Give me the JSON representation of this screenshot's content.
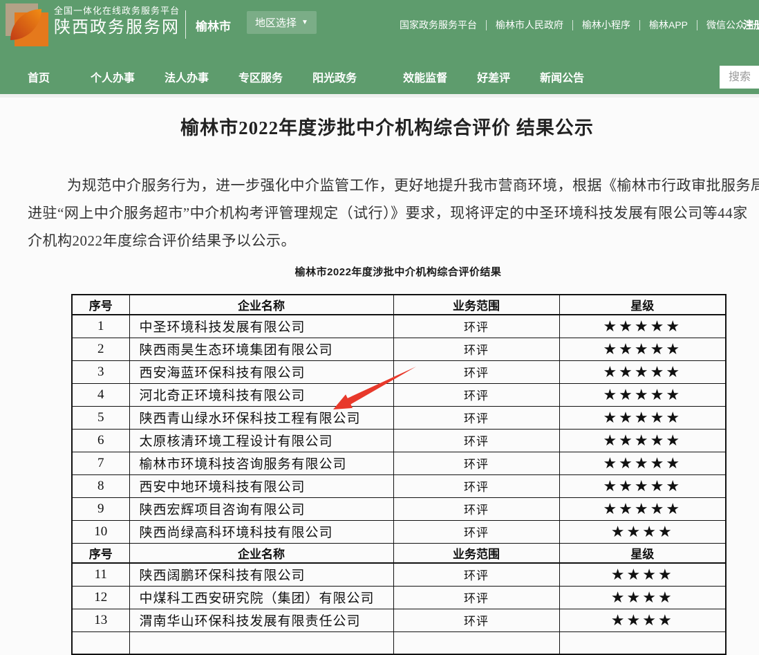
{
  "header": {
    "platform_tagline": "全国一体化在线政务服务平台",
    "site_name": "陕西政务服务网",
    "city": "榆林市",
    "region_selector": "地区选择",
    "links": [
      "国家政务服务平台",
      "榆林市人民政府",
      "榆林小程序",
      "榆林APP",
      "微信公众号"
    ],
    "register": "注册",
    "brand_green": "#5e9c6d"
  },
  "nav": {
    "items": [
      "首页",
      "个人办事",
      "法人办事",
      "专区服务",
      "阳光政务",
      "效能监督",
      "好差评",
      "新闻公告"
    ],
    "search_placeholder": "搜索"
  },
  "article": {
    "title": "榆林市2022年度涉批中介机构综合评价 结果公示",
    "paragraph_lines": [
      "为规范中介服务行为，进一步强化中介监管工作，更好地提升我市营商环境，根据《榆林市行政审批服务局关",
      "进驻“网上中介服务超市”中介机构考评管理规定（试行）》要求，现将评定的中圣环境科技发展有限公司等44家",
      "介机构2022年度综合评价结果予以公示。"
    ]
  },
  "table": {
    "caption": "榆林市2022年度涉批中介机构综合评价结果",
    "headers": [
      "序号",
      "企业名称",
      "业务范围",
      "星级"
    ],
    "star_glyph": "★",
    "sections": [
      {
        "rows": [
          {
            "no": "1",
            "company": "中圣环境科技发展有限公司",
            "scope": "环评",
            "stars": 5
          },
          {
            "no": "2",
            "company": "陕西雨昊生态环境集团有限公司",
            "scope": "环评",
            "stars": 5
          },
          {
            "no": "3",
            "company": "西安海蓝环保科技有限公司",
            "scope": "环评",
            "stars": 5
          },
          {
            "no": "4",
            "company": "河北奇正环境科技有限公司",
            "scope": "环评",
            "stars": 5
          },
          {
            "no": "5",
            "company": "陕西青山绿水环保科技工程有限公司",
            "scope": "环评",
            "stars": 5
          },
          {
            "no": "6",
            "company": "太原核清环境工程设计有限公司",
            "scope": "环评",
            "stars": 5
          },
          {
            "no": "7",
            "company": "榆林市环境科技咨询服务有限公司",
            "scope": "环评",
            "stars": 5
          },
          {
            "no": "8",
            "company": "西安中地环境科技有限公司",
            "scope": "环评",
            "stars": 5
          },
          {
            "no": "9",
            "company": "陕西宏辉项目咨询有限公司",
            "scope": "环评",
            "stars": 5
          },
          {
            "no": "10",
            "company": "陕西尚绿高科环境科技有限公司",
            "scope": "环评",
            "stars": 4
          }
        ]
      },
      {
        "rows": [
          {
            "no": "11",
            "company": "陕西阔鹏环保科技有限公司",
            "scope": "环评",
            "stars": 4
          },
          {
            "no": "12",
            "company": "中煤科工西安研究院（集团）有限公司",
            "scope": "环评",
            "stars": 4
          },
          {
            "no": "13",
            "company": "渭南华山环保科技发展有限责任公司",
            "scope": "环评",
            "stars": 4
          }
        ]
      }
    ]
  },
  "annotation": {
    "arrow_color": "#e8392b"
  }
}
